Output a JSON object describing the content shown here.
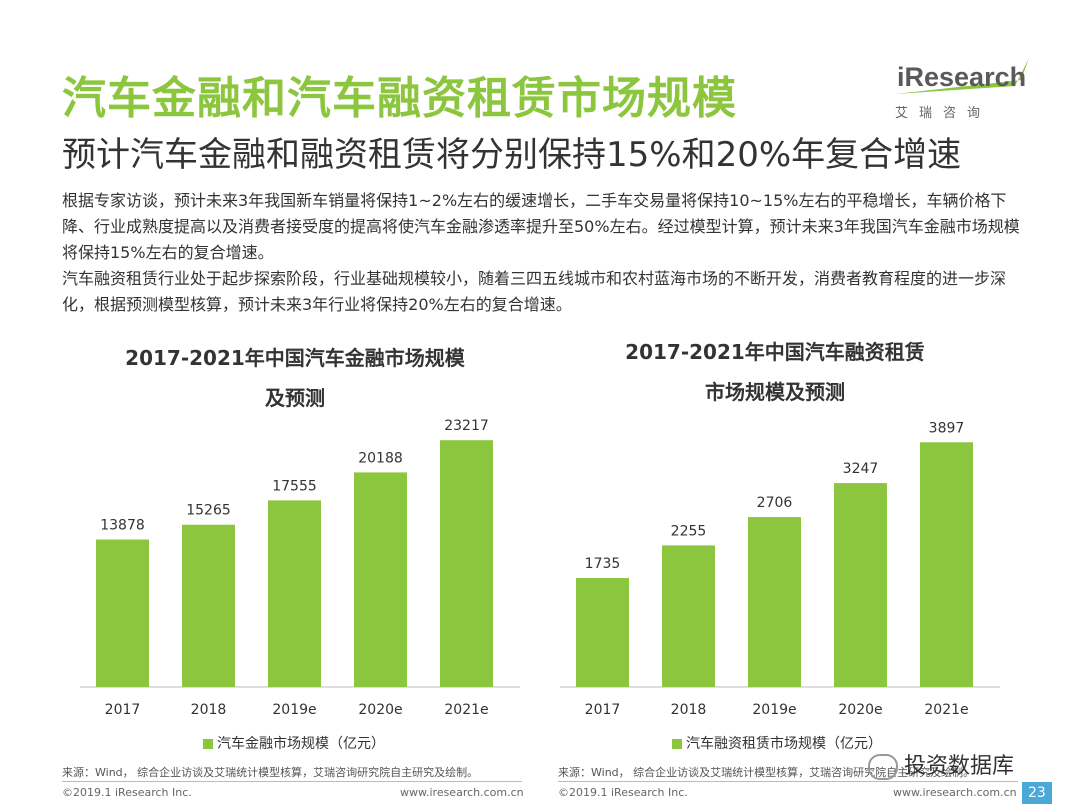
{
  "header": {
    "title": "汽车金融和汽车融资租赁市场规模",
    "subtitle": "预计汽车金融和融资租赁将分别保持15%和20%年复合增速"
  },
  "logo": {
    "text": "iResearch",
    "sub": "艾瑞咨询"
  },
  "body": {
    "p1": "根据专家访谈，预计未来3年我国新车销量将保持1~2%左右的缓速增长，二手车交易量将保持10~15%左右的平稳增长，车辆价格下降、行业成熟度提高以及消费者接受度的提高将使汽车金融渗透率提升至50%左右。经过模型计算，预计未来3年我国汽车金融市场规模将保持15%左右的复合增速。",
    "p2": "汽车融资租赁行业处于起步探索阶段，行业基础规模较小，随着三四五线城市和农村蓝海市场的不断开发，消费者教育程度的进一步深化，根据预测模型核算，预计未来3年行业将保持20%左右的复合增速。"
  },
  "chart_data": [
    {
      "type": "bar",
      "title": "2017-2021年中国汽车金融市场规模及预测",
      "title_line1": "2017-2021年中国汽车金融市场规模",
      "title_line2": "及预测",
      "categories": [
        "2017",
        "2018",
        "2019e",
        "2020e",
        "2021e"
      ],
      "values": [
        13878,
        15265,
        17555,
        20188,
        23217
      ],
      "labels": [
        "13878",
        "15265",
        "17555",
        "20188",
        "23217"
      ],
      "series_name": "汽车金融市场规模（亿元）",
      "ylim": [
        0,
        27000
      ],
      "grid": false,
      "legend": "bottom",
      "color": "#8cc63f"
    },
    {
      "type": "bar",
      "title": "2017-2021年中国汽车融资租赁市场规模及预测",
      "title_line1": "2017-2021年中国汽车融资租赁",
      "title_line2": "市场规模及预测",
      "categories": [
        "2017",
        "2018",
        "2019e",
        "2020e",
        "2021e"
      ],
      "values": [
        1735,
        2255,
        2706,
        3247,
        3897
      ],
      "labels": [
        "1735",
        "2255",
        "2706",
        "3247",
        "3897"
      ],
      "series_name": "汽车融资租赁市场规模（亿元）",
      "ylim": [
        0,
        4570
      ],
      "grid": false,
      "legend": "bottom",
      "color": "#8cc63f"
    }
  ],
  "sources": {
    "left": "来源：Wind， 综合企业访谈及艾瑞统计模型核算，艾瑞咨询研究院自主研究及绘制。",
    "right": "来源：Wind， 综合企业访谈及艾瑞统计模型核算，艾瑞咨询研究院自主研究及绘制。"
  },
  "footer": {
    "copyright_left": "©2019.1 iResearch Inc.",
    "url_left": "www.iresearch.com.cn",
    "copyright_right": "©2019.1 iResearch Inc.",
    "url_right": "www.iresearch.com.cn"
  },
  "watermark": "投资数据库",
  "page_number": "23"
}
